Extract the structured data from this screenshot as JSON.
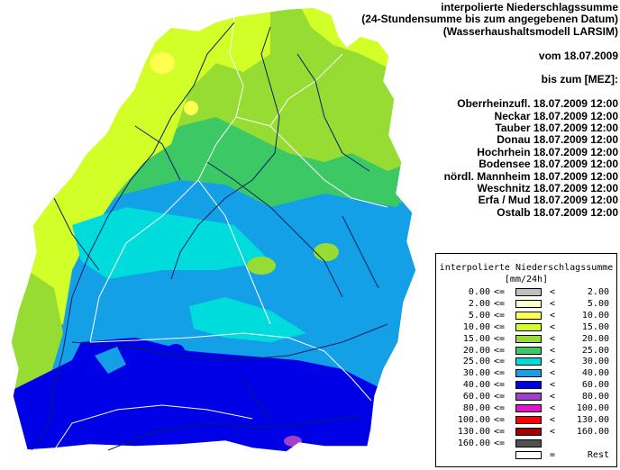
{
  "header": {
    "title_line1": "interpolierte Niederschlagssumme",
    "title_line2": "(24-Stundensumme bis zum angegebenen Datum)",
    "title_line3": "(Wasserhaushaltsmodell LARSIM)",
    "date_line": "vom 18.07.2009",
    "until_line": "bis zum [MEZ]:",
    "catchments": [
      "Oberrheinzufl. 18.07.2009 12:00",
      "Neckar 18.07.2009 12:00",
      "Tauber 18.07.2009 12:00",
      "Donau 18.07.2009 12:00",
      "Hochrhein 18.07.2009 12:00",
      "Bodensee 18.07.2009 12:00",
      "nördl. Mannheim 18.07.2009 12:00",
      "Weschnitz 18.07.2009 12:00",
      "Erfa / Mud 18.07.2009 12:00",
      "Ostalb 18.07.2009 12:00"
    ]
  },
  "legend": {
    "title": "interpolierte Niederschlagssumme",
    "unit": "[mm/24h]",
    "ge_symbol": "<=",
    "lt_symbol": "<",
    "eq_symbol": "=",
    "classes": [
      {
        "low": "0.00",
        "high": "2.00",
        "color": "#c0c0c0"
      },
      {
        "low": "2.00",
        "high": "5.00",
        "color": "#ffffc8"
      },
      {
        "low": "5.00",
        "high": "10.00",
        "color": "#ffff50"
      },
      {
        "low": "10.00",
        "high": "15.00",
        "color": "#d2ff28"
      },
      {
        "low": "15.00",
        "high": "20.00",
        "color": "#96dc32"
      },
      {
        "low": "20.00",
        "high": "25.00",
        "color": "#3cc864"
      },
      {
        "low": "25.00",
        "high": "30.00",
        "color": "#00dcdc"
      },
      {
        "low": "30.00",
        "high": "40.00",
        "color": "#14a0e6"
      },
      {
        "low": "40.00",
        "high": "60.00",
        "color": "#0000e6"
      },
      {
        "low": "60.00",
        "high": "80.00",
        "color": "#a040c8"
      },
      {
        "low": "80.00",
        "high": "100.00",
        "color": "#e614c8"
      },
      {
        "low": "100.00",
        "high": "130.00",
        "color": "#ff0000"
      },
      {
        "low": "130.00",
        "high": "160.00",
        "color": "#a00000"
      },
      {
        "low": "160.00",
        "high": "",
        "color": "#505050"
      }
    ],
    "rest_label": "Rest",
    "rest_color": "#ffffff"
  },
  "colors": {
    "rivers": "#0a1e64",
    "borders": "#ffffff"
  }
}
